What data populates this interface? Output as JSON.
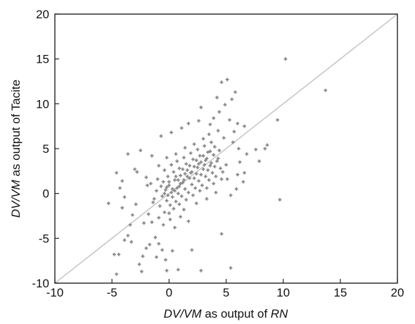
{
  "chart_data": {
    "type": "scatter",
    "xlabel": {
      "parts": [
        {
          "text": "DV/VM",
          "italic": true
        },
        {
          "text": " as output of ",
          "italic": false
        },
        {
          "text": "RN",
          "italic": true
        }
      ]
    },
    "ylabel": {
      "parts": [
        {
          "text": "DV/VM",
          "italic": true
        },
        {
          "text": " as output of Tacite",
          "italic": false
        }
      ]
    },
    "xlim": [
      -10,
      20
    ],
    "ylim": [
      -10,
      20
    ],
    "xticks": [
      -10,
      -5,
      0,
      5,
      10,
      15,
      20
    ],
    "yticks": [
      -10,
      -5,
      0,
      5,
      10,
      15,
      20
    ],
    "xtick_labels": [
      "-10",
      "-5",
      "0",
      "5",
      "10",
      "15",
      "20"
    ],
    "ytick_labels": [
      "-10",
      "-5",
      "0",
      "5",
      "10",
      "15",
      "20"
    ],
    "grid": false,
    "reference_line": {
      "from": [
        -10,
        -10
      ],
      "to": [
        20,
        20
      ],
      "color": "#c8c8c8"
    },
    "marker_color": "#8a8a8a",
    "points": [
      [
        10.2,
        15.0
      ],
      [
        13.7,
        11.5
      ],
      [
        9.5,
        8.2
      ],
      [
        9.7,
        -0.7
      ],
      [
        8.6,
        5.4
      ],
      [
        8.4,
        5.0
      ],
      [
        7.6,
        4.9
      ],
      [
        6.6,
        7.5
      ],
      [
        6.0,
        7.8
      ],
      [
        5.7,
        6.9
      ],
      [
        5.1,
        12.7
      ],
      [
        4.6,
        12.4
      ],
      [
        5.8,
        11.3
      ],
      [
        5.5,
        10.5
      ],
      [
        4.2,
        10.7
      ],
      [
        4.9,
        9.9
      ],
      [
        4.4,
        9.1
      ],
      [
        3.9,
        8.4
      ],
      [
        5.3,
        8.2
      ],
      [
        3.6,
        7.7
      ],
      [
        2.8,
        9.6
      ],
      [
        2.6,
        8.1
      ],
      [
        1.7,
        7.8
      ],
      [
        1.1,
        7.3
      ],
      [
        0.2,
        6.8
      ],
      [
        -0.7,
        6.4
      ],
      [
        -2.5,
        4.8
      ],
      [
        -3.6,
        4.4
      ],
      [
        -1.5,
        4.2
      ],
      [
        -3.0,
        2.7
      ],
      [
        -4.6,
        2.3
      ],
      [
        -2.8,
        2.4
      ],
      [
        -4.1,
        1.4
      ],
      [
        -4.3,
        0.6
      ],
      [
        -2.0,
        1.8
      ],
      [
        -1.9,
        0.9
      ],
      [
        -3.9,
        -0.4
      ],
      [
        -2.9,
        -1.2
      ],
      [
        -4.1,
        -1.6
      ],
      [
        -5.3,
        -1.1
      ],
      [
        -1.8,
        -2.3
      ],
      [
        -3.2,
        -2.4
      ],
      [
        -2.2,
        -3.3
      ],
      [
        -3.4,
        -3.5
      ],
      [
        -3.6,
        -4.7
      ],
      [
        -3.9,
        -5.2
      ],
      [
        -3.3,
        -5.4
      ],
      [
        -1.5,
        -3.2
      ],
      [
        -1.2,
        -4.9
      ],
      [
        -2.0,
        -6.1
      ],
      [
        -1.7,
        -5.7
      ],
      [
        -0.9,
        -5.6
      ],
      [
        -0.6,
        -6.3
      ],
      [
        -1.1,
        -7.1
      ],
      [
        -0.3,
        -7.4
      ],
      [
        -2.3,
        -7.0
      ],
      [
        -2.6,
        -7.9
      ],
      [
        -2.4,
        -8.7
      ],
      [
        -0.2,
        -8.6
      ],
      [
        0.8,
        -8.5
      ],
      [
        2.8,
        -8.6
      ],
      [
        5.4,
        -8.3
      ],
      [
        -4.6,
        -9.0
      ],
      [
        -4.4,
        -6.8
      ],
      [
        -4.8,
        -6.8
      ],
      [
        0.5,
        -3.8
      ],
      [
        1.7,
        -3.1
      ],
      [
        2.0,
        -6.3
      ],
      [
        4.6,
        -4.5
      ],
      [
        0.3,
        -6.4
      ],
      [
        6.6,
        2.3
      ],
      [
        6.5,
        1.3
      ],
      [
        7.9,
        3.6
      ],
      [
        6.2,
        3.5
      ],
      [
        6.0,
        2.1
      ],
      [
        5.1,
        1.6
      ],
      [
        5.9,
        0.5
      ],
      [
        5.4,
        -0.2
      ],
      [
        4.1,
        0.1
      ],
      [
        3.3,
        -0.6
      ],
      [
        2.4,
        -1.1
      ],
      [
        1.3,
        -1.8
      ],
      [
        1.0,
        -2.6
      ],
      [
        0.1,
        -2.9
      ],
      [
        -0.4,
        -2.1
      ],
      [
        -0.8,
        -1.4
      ],
      [
        -1.0,
        1.6
      ],
      [
        -0.9,
        3.1
      ],
      [
        -0.2,
        4.0
      ],
      [
        0.6,
        4.4
      ],
      [
        1.4,
        5.1
      ],
      [
        2.2,
        5.5
      ],
      [
        3.0,
        6.1
      ],
      [
        3.5,
        6.6
      ],
      [
        4.3,
        7.0
      ],
      [
        4.8,
        6.2
      ],
      [
        5.6,
        5.7
      ],
      [
        6.1,
        5.0
      ],
      [
        6.8,
        4.4
      ],
      [
        4.0,
        5.2
      ],
      [
        3.4,
        4.6
      ],
      [
        2.7,
        4.2
      ],
      [
        2.1,
        3.8
      ],
      [
        1.5,
        3.3
      ],
      [
        0.9,
        2.8
      ],
      [
        0.4,
        2.4
      ],
      [
        -0.1,
        1.9
      ],
      [
        -0.5,
        1.3
      ],
      [
        0.0,
        0.9
      ],
      [
        0.5,
        1.5
      ],
      [
        1.0,
        2.0
      ],
      [
        1.6,
        2.6
      ],
      [
        2.2,
        3.0
      ],
      [
        2.8,
        3.5
      ],
      [
        3.3,
        3.9
      ],
      [
        3.9,
        4.3
      ],
      [
        4.4,
        4.8
      ],
      [
        0.2,
        0.1
      ],
      [
        0.7,
        0.6
      ],
      [
        1.2,
        1.2
      ],
      [
        1.8,
        1.7
      ],
      [
        2.4,
        2.2
      ],
      [
        3.0,
        2.7
      ],
      [
        3.6,
        3.1
      ],
      [
        4.2,
        3.6
      ],
      [
        -0.6,
        -0.3
      ],
      [
        -0.2,
        -0.8
      ],
      [
        0.3,
        -0.4
      ],
      [
        0.8,
        0.0
      ],
      [
        1.4,
        0.5
      ],
      [
        2.0,
        1.0
      ],
      [
        2.6,
        1.4
      ],
      [
        3.2,
        1.9
      ],
      [
        3.8,
        2.3
      ],
      [
        4.5,
        2.8
      ],
      [
        5.0,
        3.2
      ],
      [
        -0.3,
        0.4
      ],
      [
        0.1,
        -1.3
      ],
      [
        0.6,
        -0.9
      ],
      [
        1.1,
        -0.3
      ],
      [
        1.7,
        0.1
      ],
      [
        2.3,
        0.6
      ],
      [
        2.9,
        0.9
      ],
      [
        3.5,
        1.5
      ],
      [
        4.1,
        1.9
      ],
      [
        4.7,
        2.4
      ],
      [
        -1.3,
        -0.6
      ],
      [
        -1.1,
        0.3
      ],
      [
        -0.7,
        0.8
      ],
      [
        -0.4,
        2.6
      ],
      [
        0.2,
        3.2
      ],
      [
        0.7,
        3.6
      ],
      [
        1.3,
        4.0
      ],
      [
        1.9,
        4.5
      ],
      [
        2.5,
        4.9
      ],
      [
        3.1,
        5.3
      ],
      [
        3.7,
        5.7
      ],
      [
        -1.6,
        1.1
      ],
      [
        -1.4,
        -1.0
      ],
      [
        -0.9,
        -2.7
      ],
      [
        -0.5,
        -3.5
      ],
      [
        0.0,
        -2.2
      ],
      [
        0.4,
        -1.7
      ],
      [
        0.9,
        -1.2
      ],
      [
        1.5,
        -0.7
      ],
      [
        2.1,
        -0.2
      ],
      [
        2.7,
        0.3
      ],
      [
        3.3,
        0.6
      ],
      [
        3.9,
        1.1
      ],
      [
        4.6,
        1.6
      ],
      [
        0.5,
        0.3
      ],
      [
        0.9,
        0.8
      ],
      [
        1.3,
        1.5
      ],
      [
        1.9,
        2.3
      ],
      [
        2.5,
        2.9
      ],
      [
        3.1,
        3.2
      ],
      [
        2.0,
        2.4
      ],
      [
        1.6,
        1.9
      ],
      [
        1.0,
        1.1
      ],
      [
        0.3,
        0.5
      ],
      [
        -0.1,
        -0.2
      ],
      [
        0.6,
        1.9
      ],
      [
        1.2,
        2.7
      ],
      [
        1.8,
        3.1
      ],
      [
        2.4,
        3.7
      ],
      [
        3.0,
        4.2
      ],
      [
        3.6,
        4.7
      ],
      [
        2.2,
        1.7
      ],
      [
        2.8,
        2.1
      ],
      [
        3.4,
        2.6
      ],
      [
        4.0,
        3.0
      ],
      [
        0.0,
        1.3
      ],
      [
        -0.2,
        0.7
      ],
      [
        -0.4,
        0.0
      ],
      [
        0.8,
        1.5
      ],
      [
        1.4,
        2.2
      ],
      [
        2.6,
        3.3
      ],
      [
        3.2,
        3.7
      ],
      [
        3.7,
        3.4
      ],
      [
        4.3,
        3.9
      ]
    ]
  }
}
